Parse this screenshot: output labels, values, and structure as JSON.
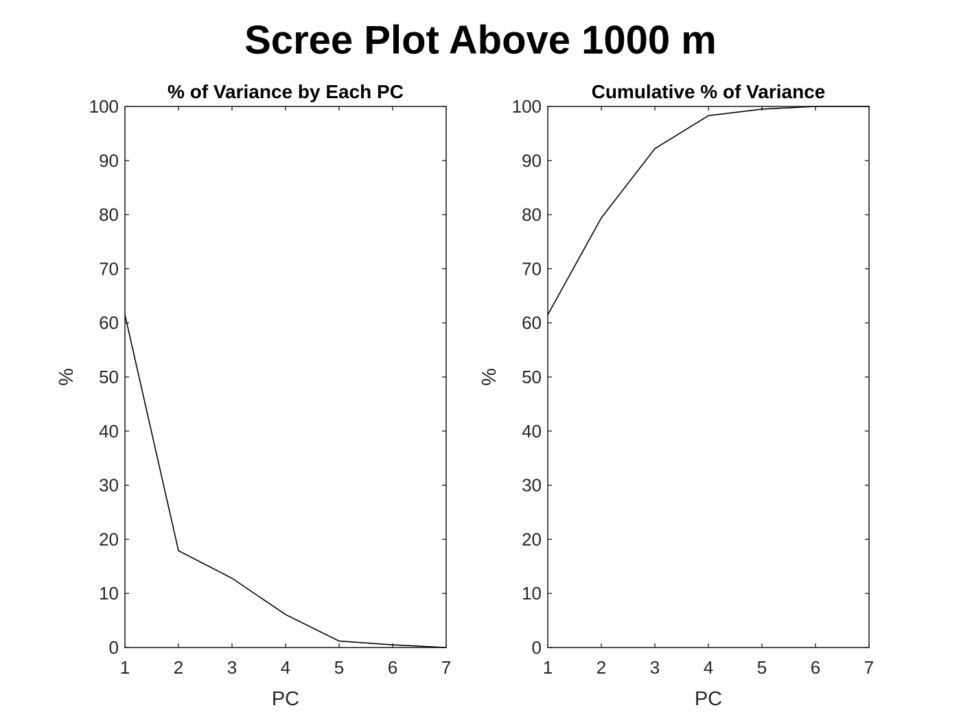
{
  "figure": {
    "title": "Scree Plot Above 1000 m"
  },
  "chart_data": [
    {
      "type": "line",
      "title": "% of Variance by Each PC",
      "xlabel": "PC",
      "ylabel": "%",
      "x": [
        1,
        2,
        3,
        4,
        5,
        6,
        7
      ],
      "xlim": [
        1,
        7
      ],
      "ylim": [
        0,
        100
      ],
      "xticks": [
        1,
        2,
        3,
        4,
        5,
        6,
        7
      ],
      "yticks": [
        0,
        10,
        20,
        30,
        40,
        50,
        60,
        70,
        80,
        90,
        100
      ],
      "grid": false,
      "series": [
        {
          "name": "variance",
          "color": "#000000",
          "values": [
            61.5,
            17.9,
            12.8,
            6.1,
            1.2,
            0.5,
            0.0
          ]
        }
      ]
    },
    {
      "type": "line",
      "title": "Cumulative % of Variance",
      "xlabel": "PC",
      "ylabel": "%",
      "x": [
        1,
        2,
        3,
        4,
        5,
        6,
        7
      ],
      "xlim": [
        1,
        7
      ],
      "ylim": [
        0,
        100
      ],
      "xticks": [
        1,
        2,
        3,
        4,
        5,
        6,
        7
      ],
      "yticks": [
        0,
        10,
        20,
        30,
        40,
        50,
        60,
        70,
        80,
        90,
        100
      ],
      "grid": false,
      "series": [
        {
          "name": "cumulative",
          "color": "#000000",
          "values": [
            61.5,
            79.4,
            92.2,
            98.3,
            99.5,
            100.0,
            100.0
          ]
        }
      ]
    }
  ]
}
